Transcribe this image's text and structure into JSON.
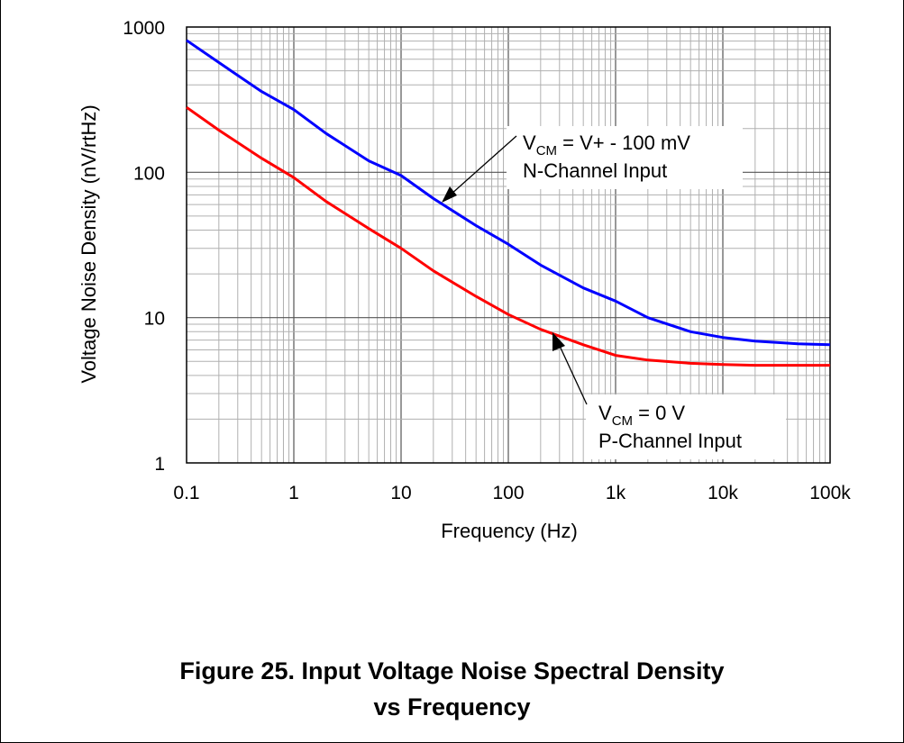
{
  "chart_data": {
    "type": "line",
    "xlabel": "Frequency (Hz)",
    "ylabel": "Voltage Noise Density (nV/rtHz)",
    "x_scale": "log",
    "y_scale": "log",
    "xlim": [
      0.1,
      100000
    ],
    "ylim": [
      1,
      1000
    ],
    "x_tick_labels": [
      "0.1",
      "1",
      "10",
      "100",
      "1k",
      "10k",
      "100k"
    ],
    "y_tick_labels": [
      "1",
      "10",
      "100",
      "1000"
    ],
    "grid": true,
    "series": [
      {
        "label_lines": [
          "V_CM = V+ - 100 mV",
          "N-Channel Input"
        ],
        "color": "#0000ff",
        "x": [
          0.1,
          0.2,
          0.5,
          1,
          2,
          5,
          10,
          20,
          50,
          100,
          200,
          500,
          1000,
          2000,
          5000,
          10000,
          20000,
          50000,
          100000
        ],
        "y": [
          810,
          570,
          360,
          270,
          185,
          120,
          95,
          66,
          43,
          32,
          23,
          16,
          13,
          10,
          8,
          7.3,
          6.9,
          6.6,
          6.5
        ]
      },
      {
        "label_lines": [
          "V_CM = 0 V",
          "P-Channel Input"
        ],
        "color": "#ff0000",
        "x": [
          0.1,
          0.2,
          0.5,
          1,
          2,
          5,
          10,
          20,
          50,
          100,
          200,
          500,
          1000,
          2000,
          5000,
          10000,
          20000,
          50000,
          100000
        ],
        "y": [
          280,
          195,
          125,
          92,
          63,
          41,
          30,
          21,
          14,
          10.5,
          8.3,
          6.5,
          5.5,
          5.1,
          4.85,
          4.75,
          4.7,
          4.7,
          4.7
        ]
      }
    ]
  },
  "annotations": {
    "n_channel": {
      "vcm": "V",
      "sub": "CM",
      "rest": " = V+ - 100 mV",
      "line2": "N-Channel Input"
    },
    "p_channel": {
      "vcm": "V",
      "sub": "CM",
      "rest": " = 0 V",
      "line2": "P-Channel Input"
    }
  },
  "caption": {
    "line1": "Figure 25. Input Voltage Noise Spectral Density",
    "line2": "vs Frequency"
  }
}
